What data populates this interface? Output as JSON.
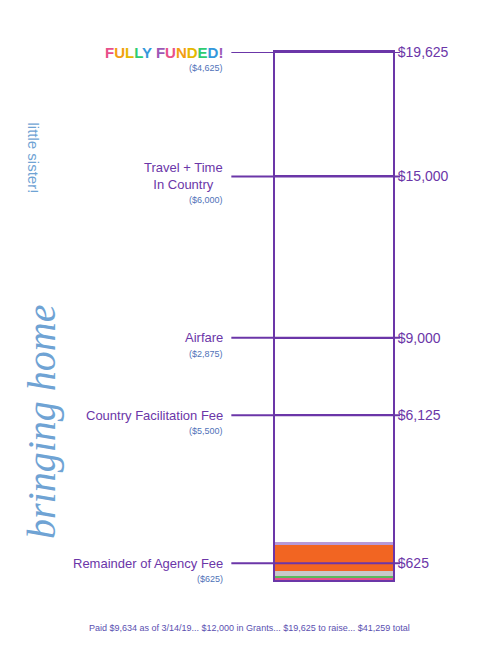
{
  "chart_data": {
    "type": "bar",
    "stacked": true,
    "categories": [
      null
    ],
    "series": [
      {
        "color": "#e8508a",
        "values": [
          60
        ]
      },
      {
        "color": "#5cb85c",
        "values": [
          100
        ]
      },
      {
        "color": "#c9c9c9",
        "values": [
          180
        ]
      },
      {
        "color": "#f26522",
        "values": [
          950
        ]
      },
      {
        "color": "#b79ad8",
        "values": [
          110
        ]
      }
    ],
    "ylim": [
      0,
      19625
    ],
    "yticks": [
      {
        "value": 625,
        "label": "$625"
      },
      {
        "value": 6125,
        "label": "$6,125"
      },
      {
        "value": 9000,
        "label": "$9,000"
      },
      {
        "value": 15000,
        "label": "$15,000"
      },
      {
        "value": 19625,
        "label": "$19,625"
      }
    ],
    "grid": true,
    "tick_labels": "y",
    "milestones": [
      {
        "value": 19625,
        "label": [
          "FULLY FUNDED!"
        ],
        "amount": "($4,625)"
      },
      {
        "value": 15000,
        "label": [
          "Travel + Time",
          "In Country"
        ],
        "amount": "($6,000)"
      },
      {
        "value": 9000,
        "label": [
          "Airfare"
        ],
        "amount": "($2,875)"
      },
      {
        "value": 6125,
        "label": [
          "Country Facilitation Fee"
        ],
        "amount": "($5,500)"
      },
      {
        "value": 625,
        "label": [
          "Remainder of Agency Fee"
        ],
        "amount": "($625)"
      }
    ],
    "annotations": [
      "bringing home",
      "little sister!"
    ],
    "note": "Paid $9,634 as of 3/14/19... $12,000 in Grants... $19,625 to raise... $41,259 total"
  }
}
